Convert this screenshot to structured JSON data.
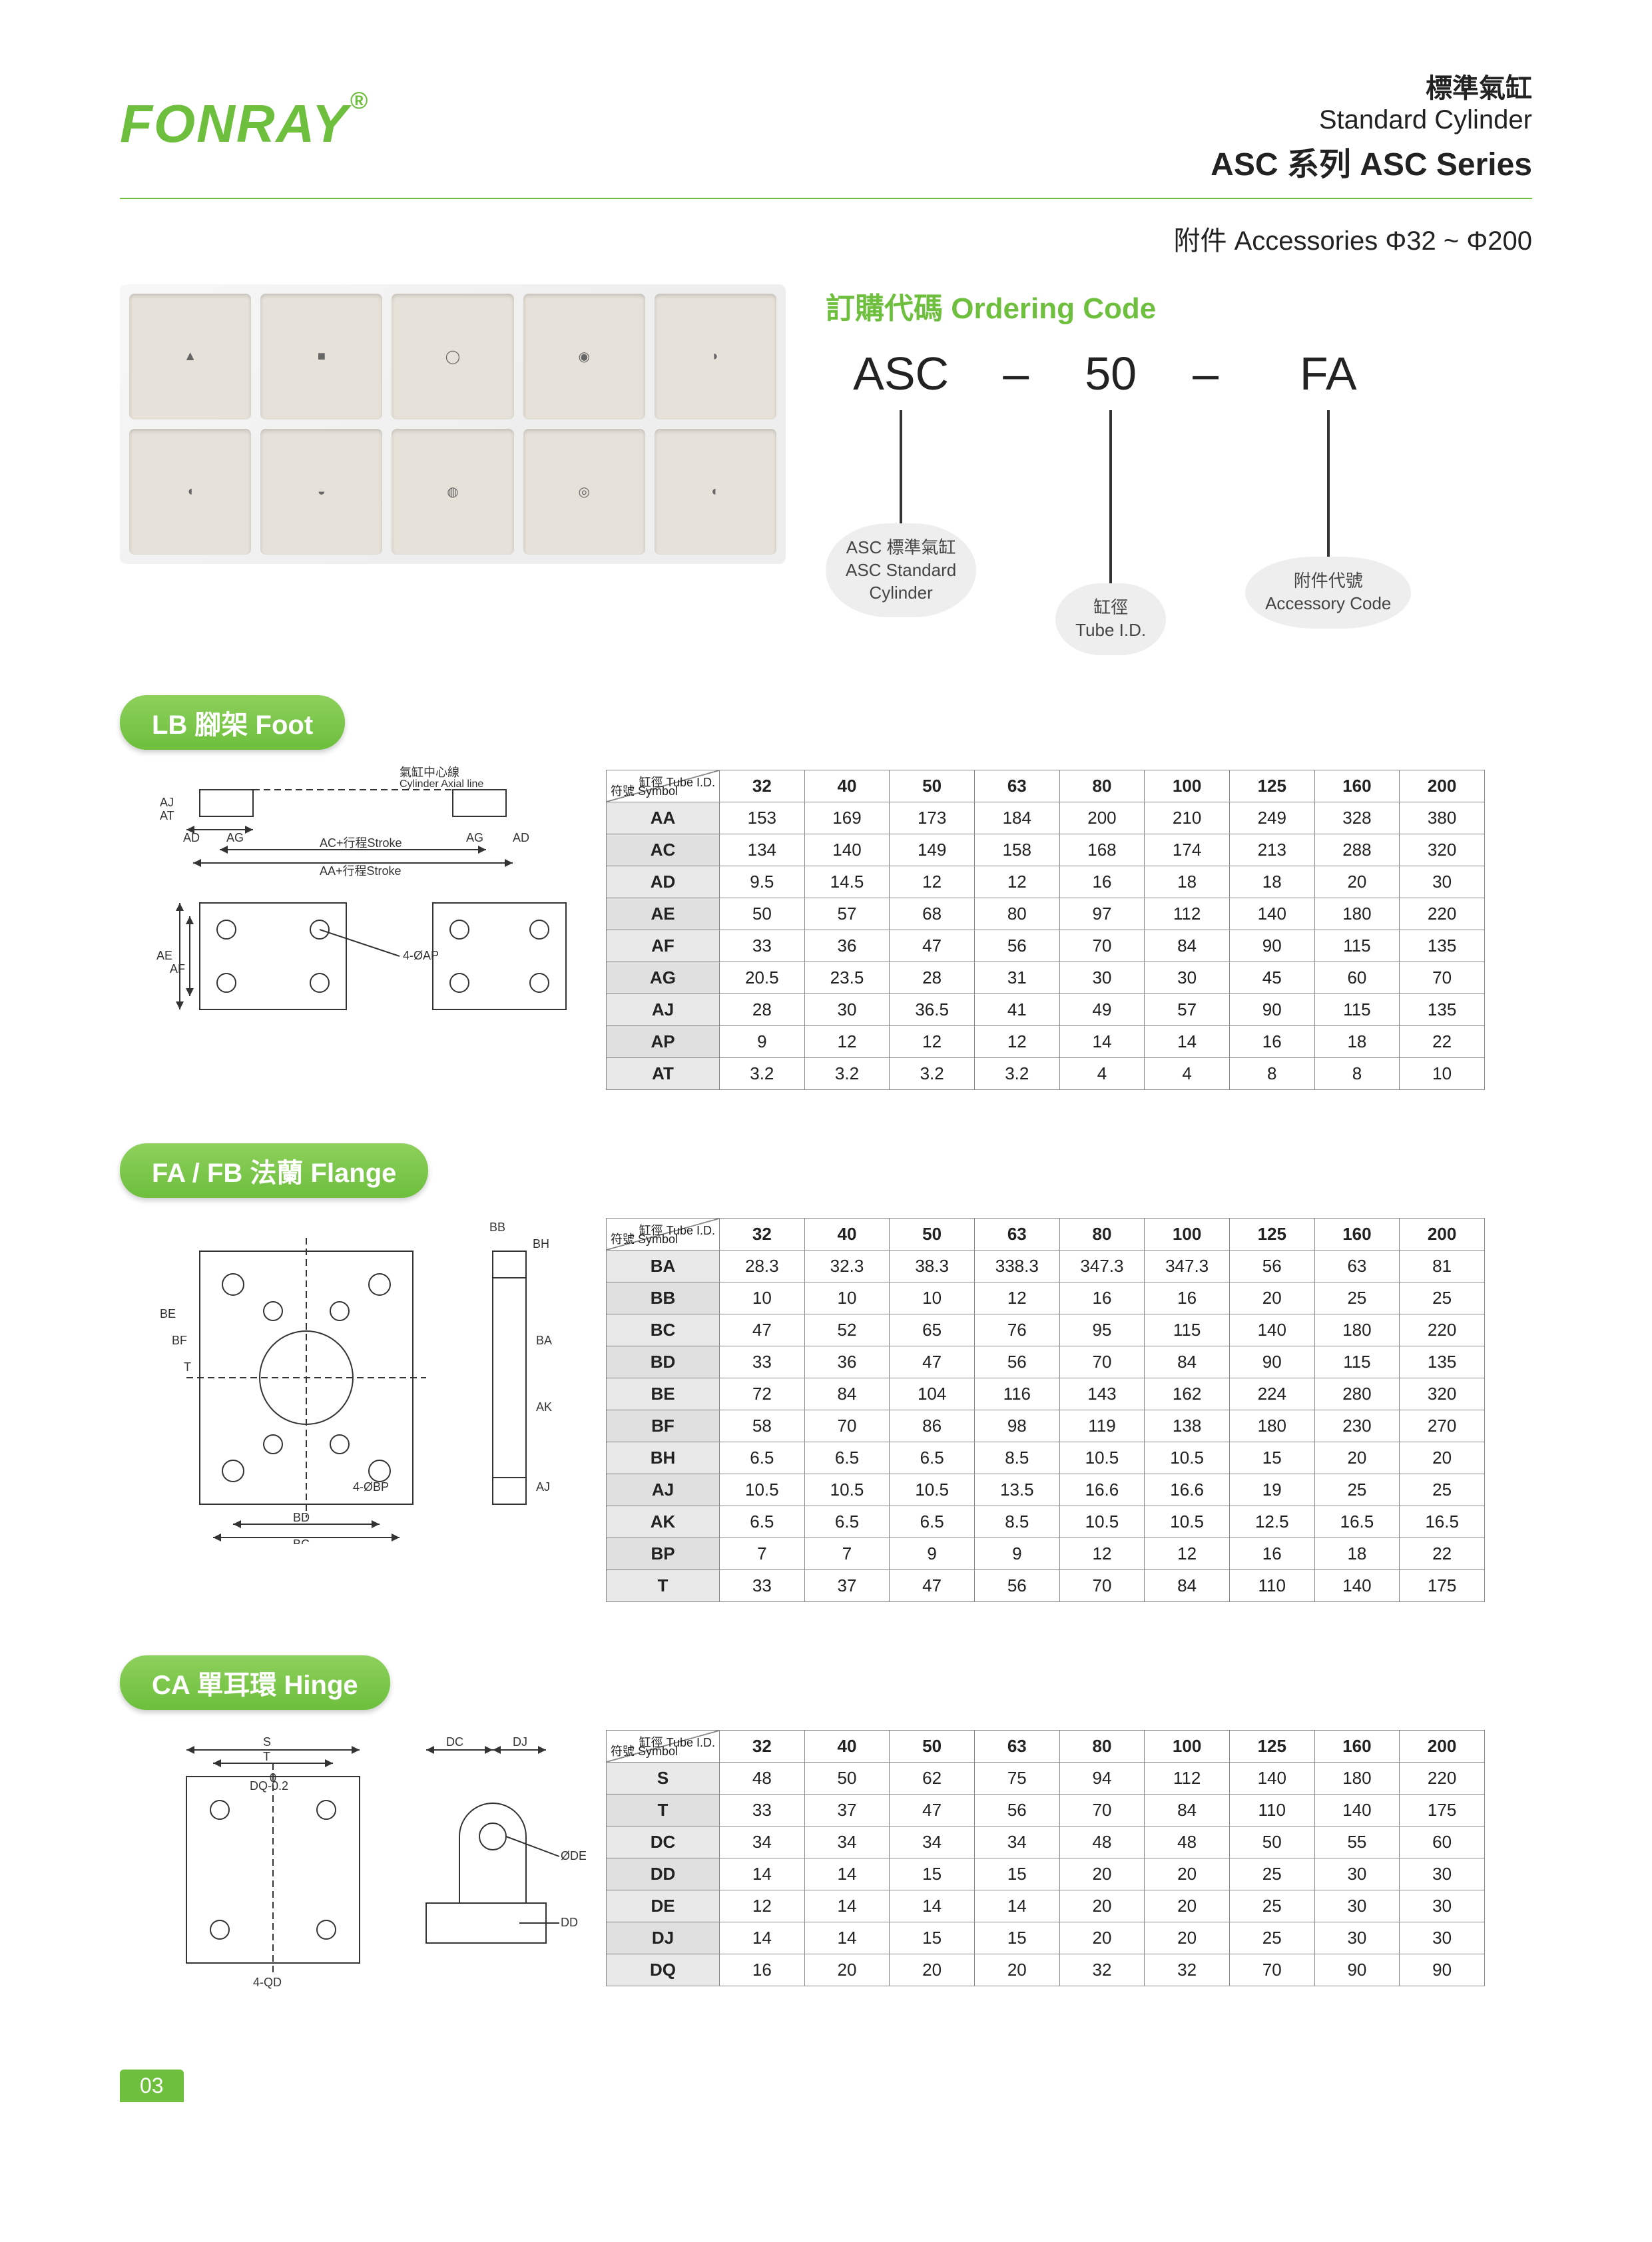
{
  "brand": "FONRAY",
  "header": {
    "zh": "標準氣缸",
    "en": "Standard  Cylinder",
    "series": "ASC 系列 ASC Series"
  },
  "sub_header": "附件  Accessories  Φ32  ~  Φ200",
  "ordering": {
    "title": "訂購代碼 Ordering Code",
    "segs": [
      "ASC",
      "–",
      "50",
      "–",
      "FA"
    ],
    "note1_zh": "ASC 標準氣缸",
    "note1_en1": "ASC Standard",
    "note1_en2": "Cylinder",
    "note2_zh": "缸徑",
    "note2_en": "Tube I.D.",
    "note3_zh": "附件代號",
    "note3_en": "Accessory Code"
  },
  "sections": {
    "lb": "LB 腳架 Foot",
    "fa": "FA / FB 法蘭 Flange",
    "ca": "CA  單耳環 Hinge"
  },
  "table_header": {
    "corner_top": "缸徑 Tube I.D.",
    "corner_bot": "符號 Symbol",
    "cols": [
      "32",
      "40",
      "50",
      "63",
      "80",
      "100",
      "125",
      "160",
      "200"
    ]
  },
  "lb_diagram": {
    "labels": [
      "AJ",
      "AT",
      "AD",
      "AG",
      "AC+行程Stroke",
      "AA+行程Stroke",
      "氣缸中心線",
      "Cylinder Axial line",
      "AE",
      "AF",
      "4-ØAP"
    ]
  },
  "lb_rows": [
    {
      "sym": "AA",
      "v": [
        "153",
        "169",
        "173",
        "184",
        "200",
        "210",
        "249",
        "328",
        "380"
      ]
    },
    {
      "sym": "AC",
      "v": [
        "134",
        "140",
        "149",
        "158",
        "168",
        "174",
        "213",
        "288",
        "320"
      ]
    },
    {
      "sym": "AD",
      "v": [
        "9.5",
        "14.5",
        "12",
        "12",
        "16",
        "18",
        "18",
        "20",
        "30"
      ]
    },
    {
      "sym": "AE",
      "v": [
        "50",
        "57",
        "68",
        "80",
        "97",
        "112",
        "140",
        "180",
        "220"
      ]
    },
    {
      "sym": "AF",
      "v": [
        "33",
        "36",
        "47",
        "56",
        "70",
        "84",
        "90",
        "115",
        "135"
      ]
    },
    {
      "sym": "AG",
      "v": [
        "20.5",
        "23.5",
        "28",
        "31",
        "30",
        "30",
        "45",
        "60",
        "70"
      ]
    },
    {
      "sym": "AJ",
      "v": [
        "28",
        "30",
        "36.5",
        "41",
        "49",
        "57",
        "90",
        "115",
        "135"
      ]
    },
    {
      "sym": "AP",
      "v": [
        "9",
        "12",
        "12",
        "12",
        "14",
        "14",
        "16",
        "18",
        "22"
      ]
    },
    {
      "sym": "AT",
      "v": [
        "3.2",
        "3.2",
        "3.2",
        "3.2",
        "4",
        "4",
        "8",
        "8",
        "10"
      ]
    }
  ],
  "fa_diagram": {
    "labels": [
      "BB",
      "BH",
      "BE",
      "BF",
      "T",
      "BD",
      "BC",
      "4-ØBP",
      "AK",
      "BA",
      "AJ"
    ]
  },
  "fa_rows": [
    {
      "sym": "BA",
      "v": [
        "28.3",
        "32.3",
        "38.3",
        "338.3",
        "347.3",
        "347.3",
        "56",
        "63",
        "81"
      ]
    },
    {
      "sym": "BB",
      "v": [
        "10",
        "10",
        "10",
        "12",
        "16",
        "16",
        "20",
        "25",
        "25"
      ]
    },
    {
      "sym": "BC",
      "v": [
        "47",
        "52",
        "65",
        "76",
        "95",
        "115",
        "140",
        "180",
        "220"
      ]
    },
    {
      "sym": "BD",
      "v": [
        "33",
        "36",
        "47",
        "56",
        "70",
        "84",
        "90",
        "115",
        "135"
      ]
    },
    {
      "sym": "BE",
      "v": [
        "72",
        "84",
        "104",
        "116",
        "143",
        "162",
        "224",
        "280",
        "320"
      ]
    },
    {
      "sym": "BF",
      "v": [
        "58",
        "70",
        "86",
        "98",
        "119",
        "138",
        "180",
        "230",
        "270"
      ]
    },
    {
      "sym": "BH",
      "v": [
        "6.5",
        "6.5",
        "6.5",
        "8.5",
        "10.5",
        "10.5",
        "15",
        "20",
        "20"
      ]
    },
    {
      "sym": "AJ",
      "v": [
        "10.5",
        "10.5",
        "10.5",
        "13.5",
        "16.6",
        "16.6",
        "19",
        "25",
        "25"
      ]
    },
    {
      "sym": "AK",
      "v": [
        "6.5",
        "6.5",
        "6.5",
        "8.5",
        "10.5",
        "10.5",
        "12.5",
        "16.5",
        "16.5"
      ]
    },
    {
      "sym": "BP",
      "v": [
        "7",
        "7",
        "9",
        "9",
        "12",
        "12",
        "16",
        "18",
        "22"
      ]
    },
    {
      "sym": "T",
      "v": [
        "33",
        "37",
        "47",
        "56",
        "70",
        "84",
        "110",
        "140",
        "175"
      ]
    }
  ],
  "ca_diagram": {
    "labels": [
      "S",
      "T",
      "DQ-0.2",
      "0",
      "DC",
      "DJ",
      "ØDE",
      "DD",
      "4-QD"
    ]
  },
  "ca_rows": [
    {
      "sym": "S",
      "v": [
        "48",
        "50",
        "62",
        "75",
        "94",
        "112",
        "140",
        "180",
        "220"
      ]
    },
    {
      "sym": "T",
      "v": [
        "33",
        "37",
        "47",
        "56",
        "70",
        "84",
        "110",
        "140",
        "175"
      ]
    },
    {
      "sym": "DC",
      "v": [
        "34",
        "34",
        "34",
        "34",
        "48",
        "48",
        "50",
        "55",
        "60"
      ]
    },
    {
      "sym": "DD",
      "v": [
        "14",
        "14",
        "15",
        "15",
        "20",
        "20",
        "25",
        "30",
        "30"
      ]
    },
    {
      "sym": "DE",
      "v": [
        "12",
        "14",
        "14",
        "14",
        "20",
        "20",
        "25",
        "30",
        "30"
      ]
    },
    {
      "sym": "DJ",
      "v": [
        "14",
        "14",
        "15",
        "15",
        "20",
        "20",
        "25",
        "30",
        "30"
      ]
    },
    {
      "sym": "DQ",
      "v": [
        "16",
        "20",
        "20",
        "20",
        "32",
        "32",
        "70",
        "90",
        "90"
      ]
    }
  ],
  "page": "03",
  "style": {
    "accent": "#6dbf3d",
    "table_border": "#888",
    "sym_bg": "#e9e9e9",
    "body_font": "Arial",
    "title_size_pt": 44,
    "badge_size_pt": 40,
    "table_font_pt": 26
  }
}
